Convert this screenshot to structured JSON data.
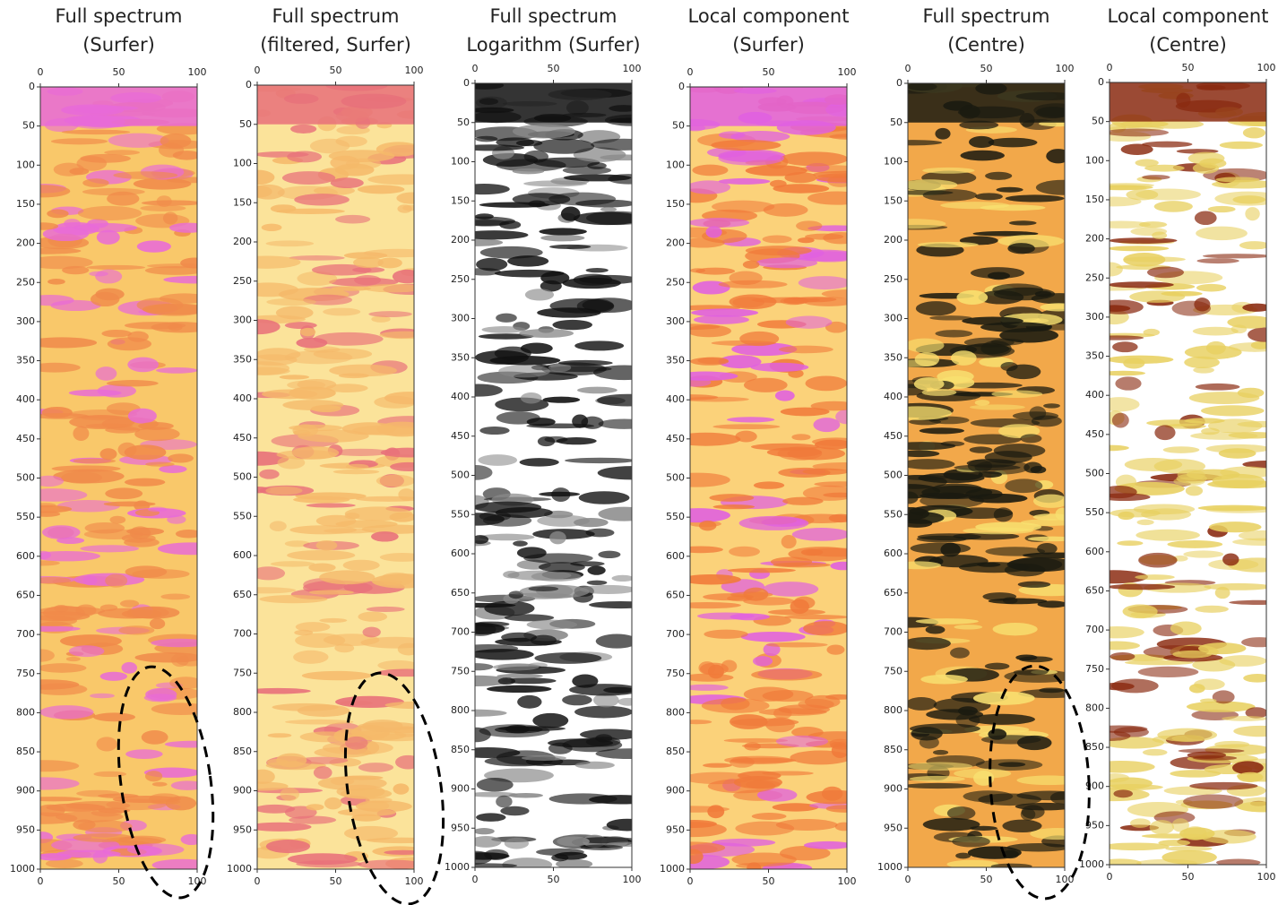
{
  "chart_data": [
    {
      "type": "heatmap",
      "title": "Full spectrum",
      "subtitle": "(Surfer)",
      "xlim": [
        0,
        100
      ],
      "xticks": [
        0,
        50,
        100
      ],
      "ylim": [
        0,
        1000
      ],
      "yticks": [
        0,
        50,
        100,
        150,
        200,
        250,
        300,
        350,
        400,
        450,
        500,
        550,
        600,
        650,
        700,
        750,
        800,
        850,
        900,
        950,
        1000
      ],
      "colors": [
        "#f9c86a",
        "#f08a4a",
        "#e86ad8"
      ]
    },
    {
      "type": "heatmap",
      "title": "Full spectrum",
      "subtitle": "(filtered, Surfer)",
      "xlim": [
        0,
        100
      ],
      "xticks": [
        0,
        50,
        100
      ],
      "ylim": [
        0,
        1000
      ],
      "yticks": [
        0,
        50,
        100,
        150,
        200,
        250,
        300,
        350,
        400,
        450,
        500,
        550,
        600,
        650,
        700,
        750,
        800,
        850,
        900,
        950,
        1000
      ],
      "colors": [
        "#fbe39a",
        "#f5b96a",
        "#e8707a"
      ]
    },
    {
      "type": "heatmap",
      "title": "Full spectrum",
      "subtitle": "Logarithm (Surfer)",
      "xlim": [
        0,
        100
      ],
      "xticks": [
        0,
        50,
        100
      ],
      "ylim": [
        0,
        1000
      ],
      "yticks": [
        0,
        50,
        100,
        150,
        200,
        250,
        300,
        350,
        400,
        450,
        500,
        550,
        600,
        650,
        700,
        750,
        800,
        850,
        900,
        950,
        1000
      ],
      "colors": [
        "#ffffff",
        "#111111",
        "#8a8a8a"
      ]
    },
    {
      "type": "heatmap",
      "title": "Local component",
      "subtitle": "(Surfer)",
      "xlim": [
        0,
        100
      ],
      "xticks": [
        0,
        50,
        100
      ],
      "ylim": [
        0,
        1000
      ],
      "yticks": [
        0,
        50,
        100,
        150,
        200,
        250,
        300,
        350,
        400,
        450,
        500,
        550,
        600,
        650,
        700,
        750,
        800,
        850,
        900,
        950,
        1000
      ],
      "colors": [
        "#fbd27a",
        "#f07a3a",
        "#e060e0"
      ]
    },
    {
      "type": "heatmap",
      "title": "Full spectrum",
      "subtitle": "(Centre)",
      "xlim": [
        0,
        100
      ],
      "xticks": [
        0,
        50,
        100
      ],
      "ylim": [
        0,
        1000
      ],
      "yticks": [
        0,
        50,
        100,
        150,
        200,
        250,
        300,
        350,
        400,
        450,
        500,
        550,
        600,
        650,
        700,
        750,
        800,
        850,
        900,
        950,
        1000
      ],
      "colors": [
        "#f2a84a",
        "#1a1a10",
        "#f8e070"
      ]
    },
    {
      "type": "heatmap",
      "title": "Local component",
      "subtitle": "(Centre)",
      "xlim": [
        0,
        100
      ],
      "xticks": [
        0,
        50,
        100
      ],
      "ylim": [
        0,
        1000
      ],
      "yticks": [
        0,
        50,
        100,
        150,
        200,
        250,
        300,
        350,
        400,
        450,
        500,
        550,
        600,
        650,
        700,
        750,
        800,
        850,
        900,
        950,
        1000
      ],
      "colors": [
        "#ffffff",
        "#e8d060",
        "#8a2a10"
      ]
    }
  ]
}
